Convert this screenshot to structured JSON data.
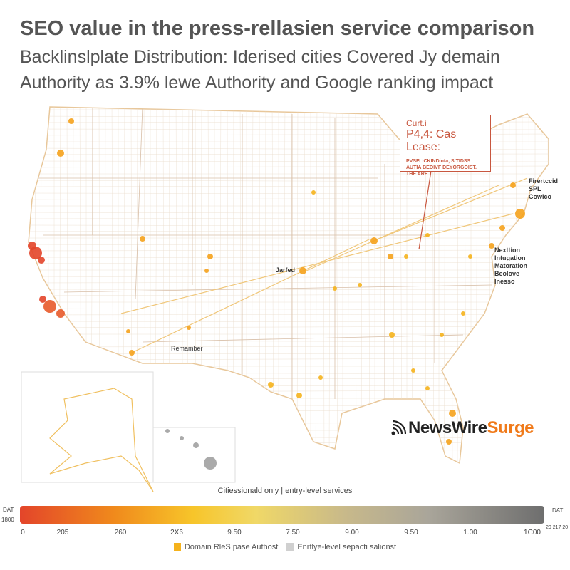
{
  "title": "SEO value in the press-rellasien service comparison",
  "subtitle_1": "Backlinslplate Distribution:  Iderised cities Covered Jy demain",
  "subtitle_2": "Authority as 3.9% lewe Authority and Google ranking impact",
  "callout": {
    "line1": "Curt.i",
    "line2": "P4,4: Cas Lease:",
    "line3": "PVSFLICKINDinta, S TIDSS",
    "line4": "AUTIA BEOIVF DEYORGOIST.",
    "line5": "THE ARE"
  },
  "labels": {
    "northeast": [
      "Firertccid SPL",
      "Cowico"
    ],
    "midatlantic": [
      "Nexttion",
      "Intugation",
      "Matoration",
      "Beolove",
      "Inesso"
    ],
    "center": "Jarfed",
    "southwest": "Remamber"
  },
  "logo": {
    "part1": "NewsWire",
    "part2": "Surge",
    "icon": "wifi-signal-icon"
  },
  "scale_note": "Citiessionald only |   entry-level services",
  "scale": {
    "left_label": "DAT",
    "left_value": "1800",
    "right_label": "DAT",
    "right_value": "20 217 20",
    "ticks": [
      "0",
      "205",
      "260",
      "2X6",
      "9.50",
      "7.50",
      "9.00",
      "9.50",
      "1.00",
      "1C00"
    ],
    "colors": [
      "#e3452a",
      "#f08a1c",
      "#f7c52a",
      "#c8b98a",
      "#6e6e6e"
    ]
  },
  "legend": [
    {
      "label": "Domain RleS pase Authost",
      "color": "#f5b21c"
    },
    {
      "label": "Enrtlye-level sepacti salionst",
      "color": "#d0d0d0"
    }
  ]
}
